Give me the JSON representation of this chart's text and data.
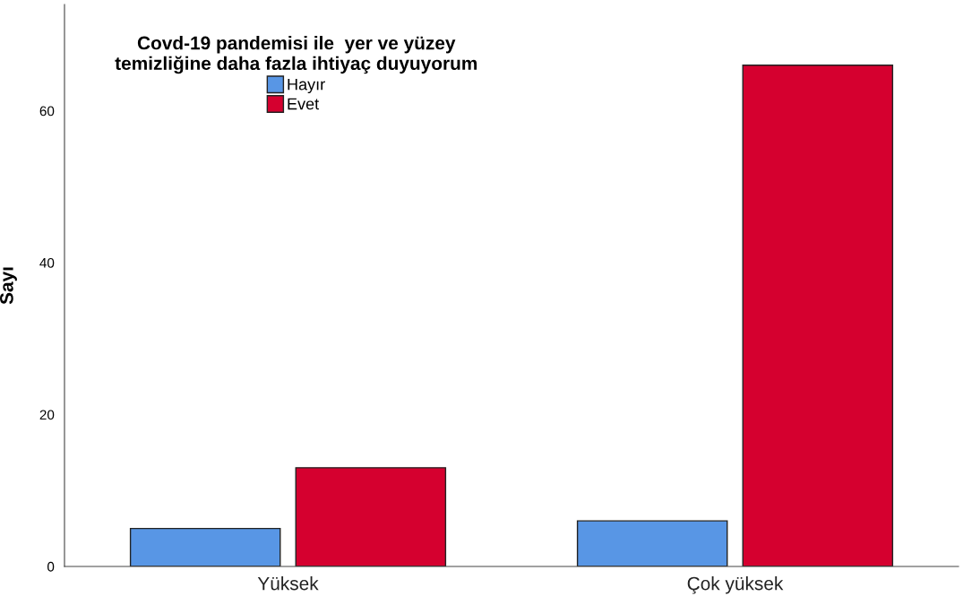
{
  "chart_data": {
    "type": "bar",
    "legend_title": "Covd-19 pandemisi ile  yer ve yüzey\ntemizliğine daha fazla ihtiyaç duyuyorum",
    "ylabel": "Sayı",
    "categories": [
      "Yüksek",
      "Çok yüksek"
    ],
    "series": [
      {
        "name": "Hayır",
        "color": "#5896e5",
        "values": [
          5,
          6
        ]
      },
      {
        "name": "Evet",
        "color": "#d5002f",
        "values": [
          13,
          66
        ]
      }
    ],
    "ylim": [
      0,
      74
    ],
    "yticks": [
      0,
      20,
      40,
      60
    ],
    "grid": false,
    "legend": "top left"
  }
}
